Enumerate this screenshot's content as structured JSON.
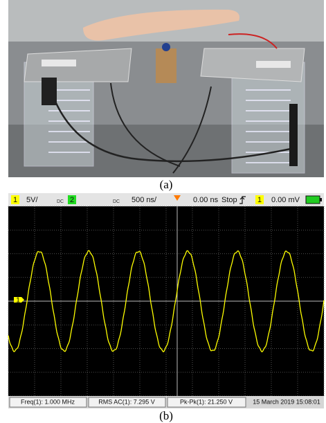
{
  "photo": {
    "caption": "(a)"
  },
  "scope": {
    "caption": "(b)",
    "status": {
      "channel1": "1",
      "volts_per_div": "5V/",
      "coupling1": "DC",
      "channel2": "2",
      "coupling2": "DC",
      "time_per_div": "500 ns/",
      "delay": "0.00 ns",
      "state": "Stop",
      "trigger_channel": "1",
      "trigger_level": "0.00 mV"
    },
    "channel_marker": "1",
    "measurements": [
      "Freq(1): 1.000 MHz",
      "RMS AC(1): 7.295 V",
      "Pk-Pk(1): 21.250 V"
    ],
    "timestamp": "15 March 2019  15:08:01"
  }
}
